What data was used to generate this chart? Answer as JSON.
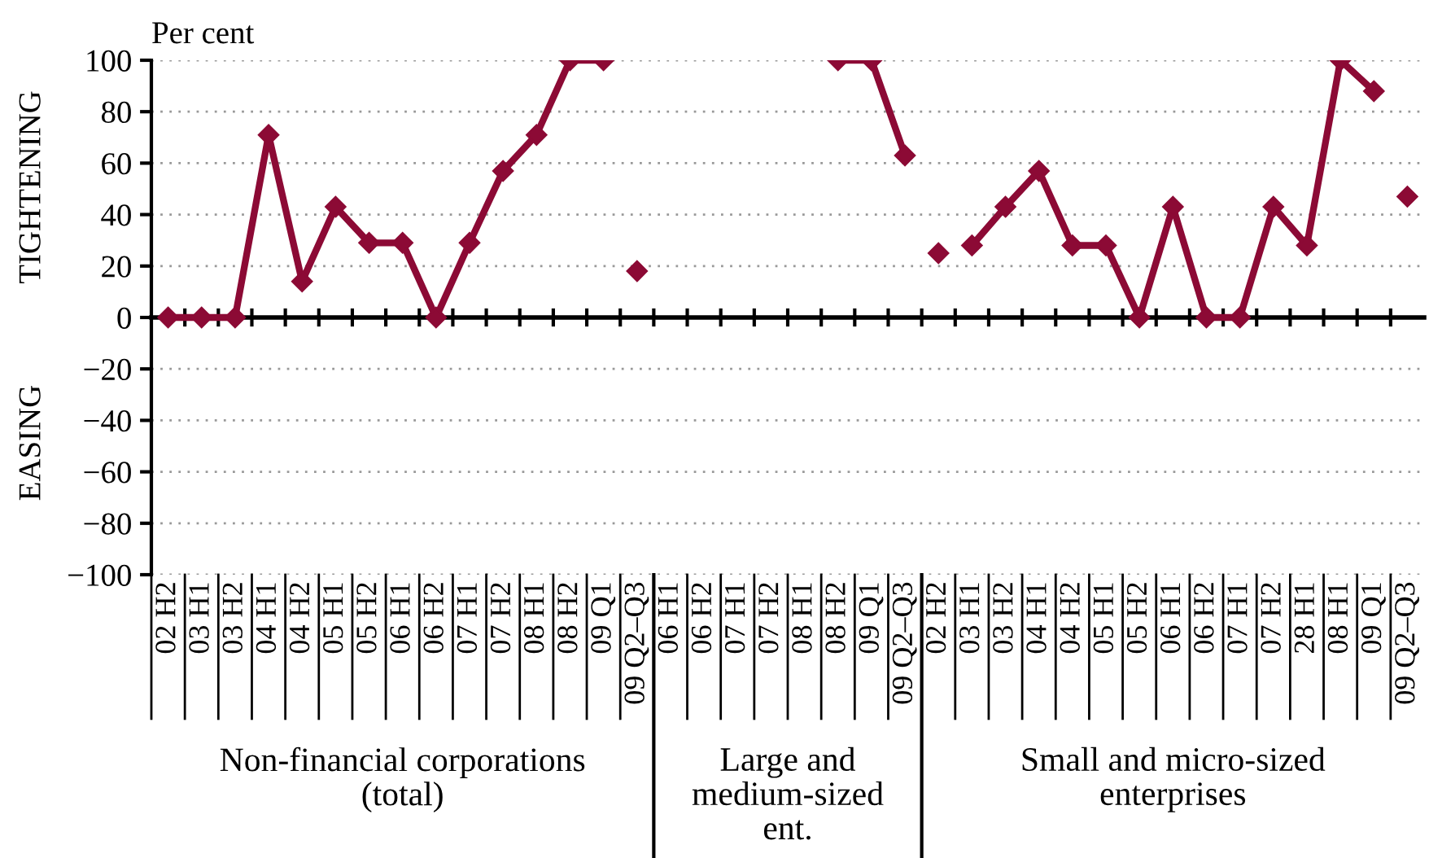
{
  "chart_data": {
    "type": "line",
    "categories": [
      "02 H2",
      "03 H1",
      "03 H2",
      "04 H1",
      "04 H2",
      "05 H1",
      "05 H2",
      "06 H1",
      "06 H2",
      "07 H1",
      "07 H2",
      "08 H1",
      "08 H2",
      "09 Q1",
      "09 Q2–Q3",
      "06 H1",
      "06 H2",
      "07 H1",
      "07 H2",
      "08 H1",
      "08 H2",
      "09 Q1",
      "09 Q2–Q3",
      "02 H2",
      "03 H1",
      "03 H2",
      "04 H1",
      "04 H2",
      "05 H1",
      "05 H2",
      "06 H1",
      "06 H2",
      "07 H1",
      "07 H2",
      "28 H1",
      "08 H1",
      "09 Q1",
      "09 Q2–Q3"
    ],
    "series": [
      {
        "color": "#8c0a35",
        "values": [
          0,
          0,
          0,
          71,
          14,
          43,
          29,
          29,
          0,
          29,
          57,
          71,
          100,
          100,
          null,
          null,
          null,
          null,
          null,
          null,
          100,
          100,
          63,
          null,
          28,
          43,
          57,
          28,
          28,
          0,
          43,
          0,
          0,
          43,
          28,
          100,
          88,
          null
        ]
      },
      {
        "type": "scatter",
        "color": "#8c0a35",
        "values": [
          null,
          null,
          null,
          null,
          null,
          null,
          null,
          null,
          null,
          null,
          null,
          null,
          null,
          null,
          18,
          null,
          null,
          null,
          null,
          null,
          null,
          null,
          null,
          25,
          null,
          null,
          null,
          null,
          null,
          null,
          null,
          null,
          null,
          null,
          null,
          null,
          null,
          47
        ]
      }
    ],
    "ylim": [
      -100,
      100
    ],
    "yticks": [
      {
        "value": -100,
        "label": "−100"
      },
      {
        "value": -80,
        "label": "−80"
      },
      {
        "value": -60,
        "label": "−60"
      },
      {
        "value": -40,
        "label": "−40"
      },
      {
        "value": -20,
        "label": "−20"
      },
      0,
      20,
      40,
      60,
      80,
      100
    ],
    "grid": "y",
    "marker": "diamond",
    "line_style": "solid",
    "legend": false,
    "annotations": [
      "Per cent",
      "TIGHTENING",
      "EASING",
      "Non-financial corporations\n(total)",
      "Large and\nmedium-sized\nent.",
      "Small and micro-sized\nenterprises"
    ]
  }
}
